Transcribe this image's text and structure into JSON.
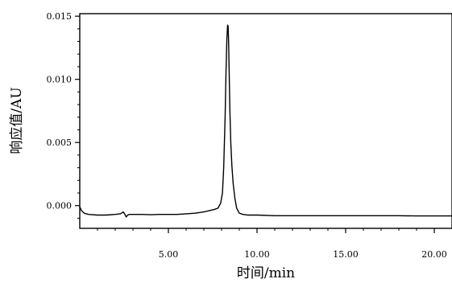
{
  "chart_data": {
    "type": "line",
    "title": "",
    "xlabel": "时间/min",
    "ylabel": "响应值/AU",
    "xlim": [
      0,
      21
    ],
    "ylim": [
      -0.0018,
      0.0152
    ],
    "xticks": [
      5.0,
      10.0,
      15.0,
      20.0
    ],
    "xtick_labels": [
      "5.00",
      "10.00",
      "15.00",
      "20.00"
    ],
    "yticks": [
      0.0,
      0.005,
      0.01,
      0.015
    ],
    "ytick_labels": [
      "0.000",
      "0.005",
      "0.010",
      "0.015"
    ],
    "grid": false,
    "series": [
      {
        "color": "#000000",
        "x": [
          0.0,
          0.1,
          0.25,
          0.5,
          1.0,
          1.5,
          2.0,
          2.3,
          2.45,
          2.55,
          2.62,
          2.7,
          2.8,
          3.0,
          3.5,
          4.0,
          4.5,
          5.0,
          5.5,
          6.0,
          6.5,
          7.0,
          7.3,
          7.6,
          7.8,
          7.95,
          8.05,
          8.12,
          8.2,
          8.25,
          8.3,
          8.34,
          8.37,
          8.4,
          8.43,
          8.47,
          8.52,
          8.58,
          8.65,
          8.75,
          8.85,
          9.0,
          9.2,
          9.5,
          10.0,
          11.0,
          12.0,
          13.0,
          14.0,
          15.0,
          16.0,
          17.0,
          18.0,
          19.0,
          20.0,
          21.0
        ],
        "y": [
          -0.0001,
          -0.0004,
          -0.0006,
          -0.0007,
          -0.00075,
          -0.00075,
          -0.0007,
          -0.00065,
          -0.0005,
          -0.0007,
          -0.0009,
          -0.00075,
          -0.0007,
          -0.0007,
          -0.0007,
          -0.00072,
          -0.0007,
          -0.0007,
          -0.0007,
          -0.00065,
          -0.0006,
          -0.0005,
          -0.0004,
          -0.0003,
          -0.0002,
          0.0002,
          0.001,
          0.003,
          0.007,
          0.0105,
          0.0132,
          0.0143,
          0.0142,
          0.0128,
          0.0105,
          0.0075,
          0.005,
          0.0032,
          0.0018,
          0.0006,
          -0.0002,
          -0.0006,
          -0.0007,
          -0.00075,
          -0.00075,
          -0.0008,
          -0.0008,
          -0.0008,
          -0.0008,
          -0.0008,
          -0.0008,
          -0.0008,
          -0.0008,
          -0.00082,
          -0.00082,
          -0.00082
        ]
      }
    ]
  }
}
